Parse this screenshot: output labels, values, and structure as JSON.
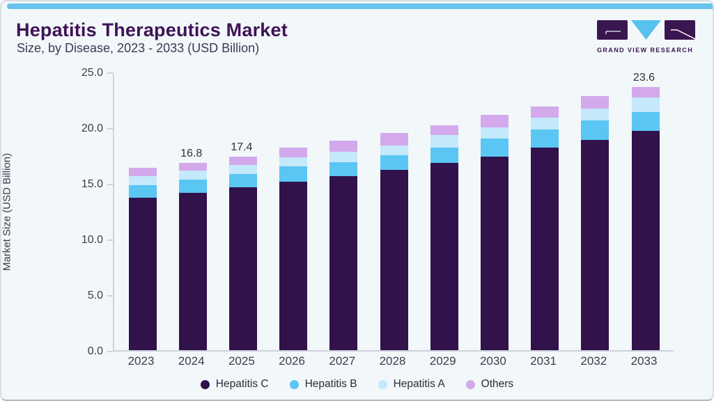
{
  "colors": {
    "accent": "#67c4ee",
    "title": "#3f1356",
    "card_bg": "#f2f7fa",
    "logo_purple": "#3a1650",
    "logo_blue": "#57c2ee"
  },
  "header": {
    "title": "Hepatitis Therapeutics Market",
    "subtitle": "Size, by Disease, 2023 - 2033 (USD Billion)",
    "logo_text": "GRAND VIEW RESEARCH"
  },
  "chart_data": {
    "type": "bar",
    "stacked": true,
    "title": "Hepatitis Therapeutics Market Size, by Disease, 2023 - 2033 (USD Billion)",
    "ylabel": "Market Size (USD Billion)",
    "ylim": [
      0,
      25
    ],
    "yticks": [
      "0.0",
      "5.0",
      "10.0",
      "15.0",
      "20.0",
      "25.0"
    ],
    "grid": false,
    "legend_position": "bottom",
    "categories": [
      "2023",
      "2024",
      "2025",
      "2026",
      "2027",
      "2028",
      "2029",
      "2030",
      "2031",
      "2032",
      "2033"
    ],
    "series": [
      {
        "name": "Hepatitis C",
        "color": "#31124b",
        "values": [
          13.7,
          14.1,
          14.6,
          15.1,
          15.6,
          16.2,
          16.8,
          17.4,
          18.2,
          18.9,
          19.7
        ]
      },
      {
        "name": "Hepatitis B",
        "color": "#5ac6f3",
        "values": [
          1.1,
          1.2,
          1.2,
          1.4,
          1.3,
          1.3,
          1.4,
          1.6,
          1.6,
          1.7,
          1.7
        ]
      },
      {
        "name": "Hepatitis A",
        "color": "#c3e9fa",
        "values": [
          0.8,
          0.8,
          0.8,
          0.8,
          0.9,
          0.9,
          1.1,
          1.0,
          1.1,
          1.1,
          1.3
        ]
      },
      {
        "name": "Others",
        "color": "#d3a9ec",
        "values": [
          0.8,
          0.7,
          0.8,
          0.9,
          1.0,
          1.1,
          0.9,
          1.1,
          1.0,
          1.1,
          0.9
        ]
      }
    ],
    "totals": [
      16.4,
      16.8,
      17.4,
      18.2,
      18.8,
      19.5,
      20.2,
      21.1,
      21.9,
      22.8,
      23.6
    ],
    "bar_labels": {
      "2024": "16.8",
      "2025": "17.4",
      "2033": "23.6"
    }
  }
}
